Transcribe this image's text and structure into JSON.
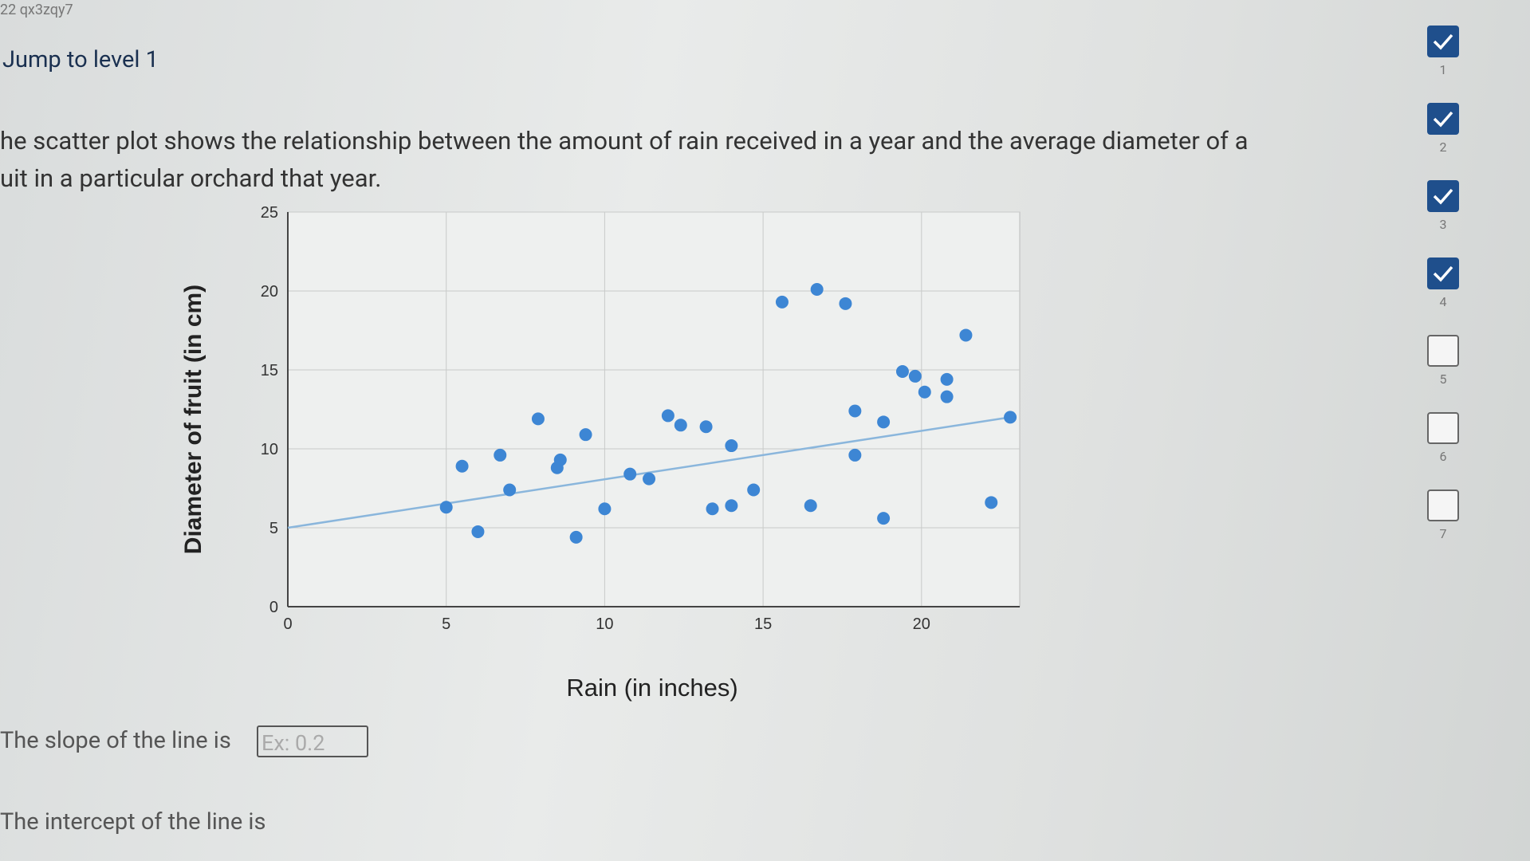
{
  "header": {
    "id": "22 qx3zqy7",
    "jump": "Jump to level 1"
  },
  "question": {
    "lines": [
      "he scatter plot shows the relationship between the amount of rain received in a year and the average diameter of a",
      "uit in a particular orchard that year."
    ]
  },
  "chart_data": {
    "type": "scatter",
    "x_label": "Rain (in inches)",
    "y_label": "Diameter of fruit (in cm)",
    "x": [
      5,
      5.5,
      6,
      6.7,
      7,
      7.9,
      8.5,
      8.6,
      9.1,
      9.4,
      10,
      10.8,
      11.4,
      12,
      12.4,
      13.2,
      13.4,
      14,
      14,
      14.7,
      15.6,
      16.5,
      16.7,
      17.6,
      17.9,
      17.9,
      18.8,
      18.8,
      19.4,
      19.8,
      20.1,
      20.8,
      20.8,
      21.4,
      22.2,
      22.8
    ],
    "values": [
      6.3,
      8.9,
      4.75,
      9.6,
      7.4,
      11.9,
      8.8,
      9.3,
      4.4,
      10.9,
      6.2,
      8.4,
      8.1,
      12.1,
      11.5,
      11.4,
      6.2,
      10.2,
      6.4,
      7.4,
      19.3,
      6.4,
      20.1,
      19.2,
      12.4,
      9.6,
      11.7,
      5.6,
      14.9,
      14.6,
      13.6,
      14.4,
      13.3,
      17.2,
      6.6,
      12.0
    ],
    "color": "#3d86d4",
    "fit_line": {
      "x": [
        0,
        22.8
      ],
      "values": [
        5,
        12
      ],
      "color": "#8ab6dc"
    },
    "xlim": [
      0,
      23.1
    ],
    "ylim": [
      0,
      25
    ],
    "xticks": [
      0,
      5,
      10,
      15,
      20
    ],
    "yticks": [
      0,
      5,
      10,
      15,
      20,
      25
    ],
    "grid": true
  },
  "answers": [
    {
      "label": "The slope of the line is",
      "placeholder": "Ex: 0.2"
    },
    {
      "label": "The intercept of the line is"
    }
  ],
  "levels": [
    {
      "label": "1",
      "done": true
    },
    {
      "label": "2",
      "done": true
    },
    {
      "label": "3",
      "done": true
    },
    {
      "label": "4",
      "done": true
    },
    {
      "label": "5",
      "done": false
    },
    {
      "label": "6",
      "done": false
    },
    {
      "label": "7",
      "done": false
    }
  ]
}
